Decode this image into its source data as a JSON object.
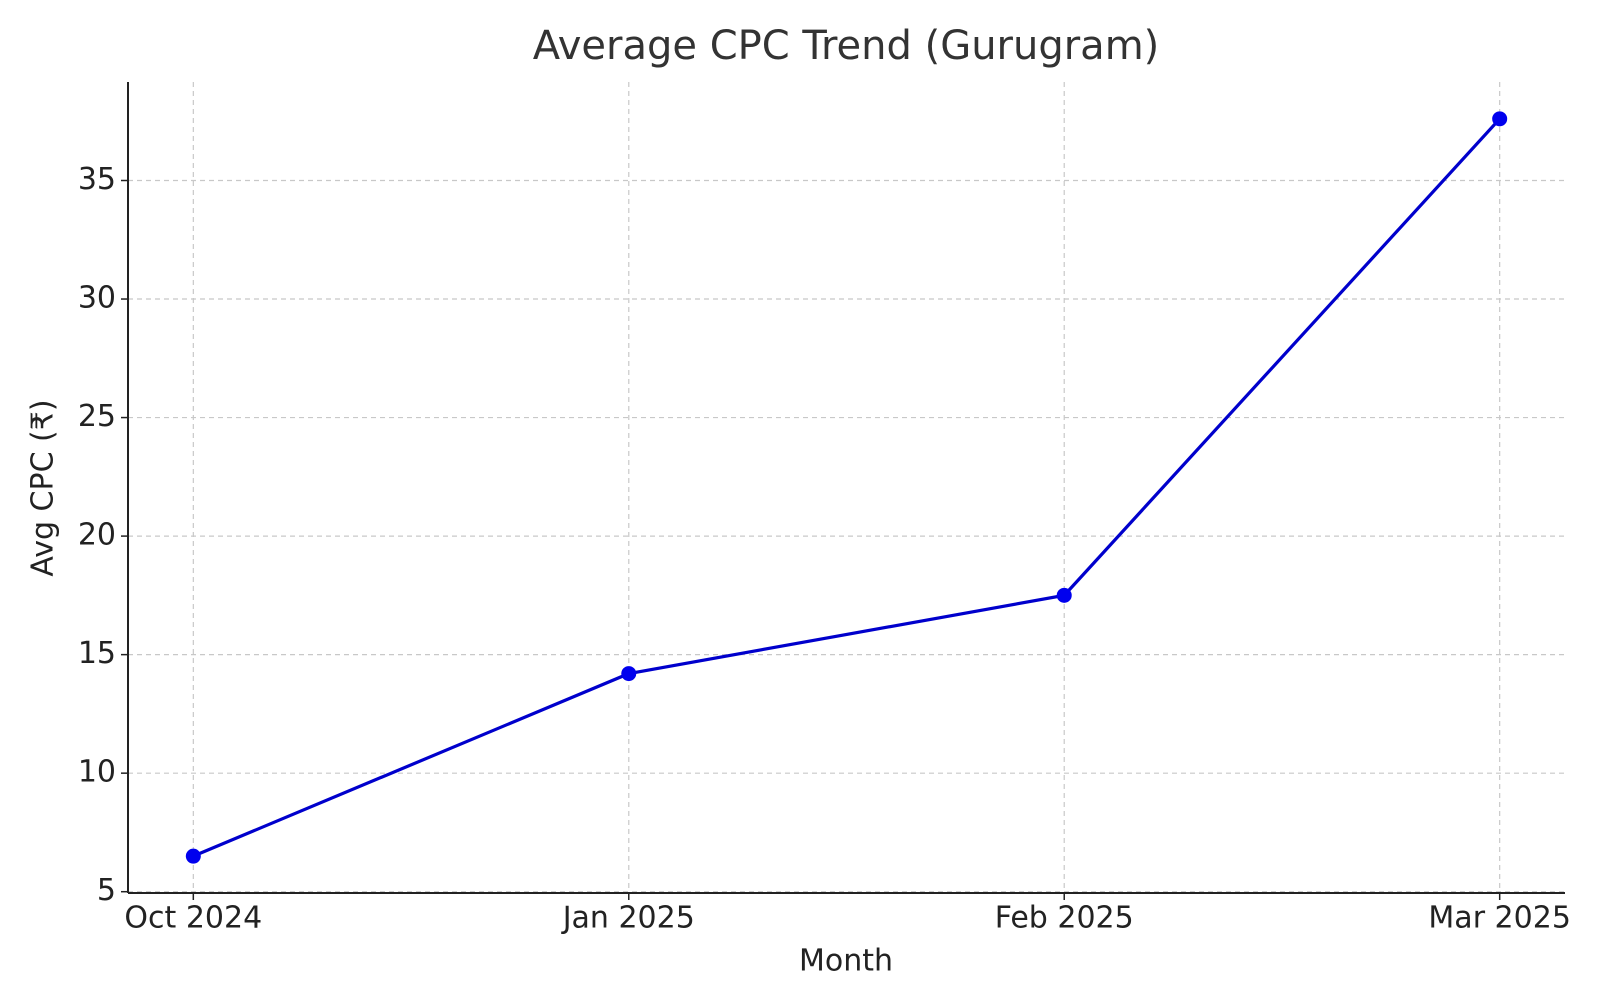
{
  "chart_data": {
    "type": "line",
    "title": "Average CPC Trend (Gurugram)",
    "x_label": "Month",
    "y_label": "Avg CPC (₹)",
    "categories": [
      "Oct 2024",
      "Jan 2025",
      "Feb 2025",
      "Mar 2025"
    ],
    "values": [
      6.5,
      14.2,
      17.5,
      37.6
    ],
    "color": "#0000cc",
    "marker_color": "#0000ee",
    "ylim": [
      4.945,
      39.155
    ],
    "yticks": [
      5,
      10,
      15,
      20,
      25,
      30,
      35
    ],
    "grid": true
  }
}
